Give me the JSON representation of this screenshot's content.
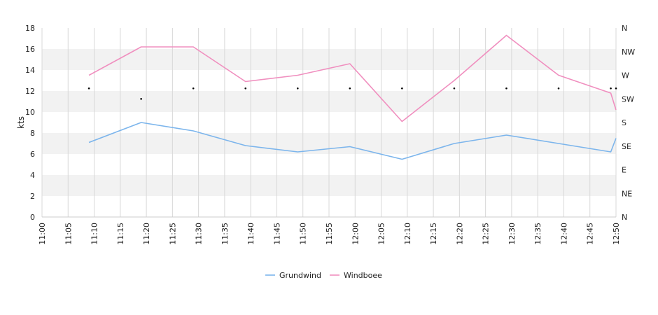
{
  "chart_data": {
    "type": "line",
    "ylabel": "kts",
    "ylim": [
      0,
      18
    ],
    "yticks": [
      "0",
      "2",
      "4",
      "6",
      "8",
      "10",
      "12",
      "14",
      "16",
      "18"
    ],
    "direction_ticks": [
      "N",
      "NE",
      "E",
      "SE",
      "S",
      "SW",
      "W",
      "NW",
      "N"
    ],
    "x_ticks": [
      "11:00",
      "11:05",
      "11:10",
      "11:15",
      "11:20",
      "11:25",
      "11:30",
      "11:35",
      "11:40",
      "11:45",
      "11:50",
      "11:55",
      "12:00",
      "12:05",
      "12:10",
      "12:15",
      "12:20",
      "12:25",
      "12:30",
      "12:35",
      "12:40",
      "12:45",
      "12:50"
    ],
    "x_range": [
      "11:00",
      "12:50"
    ],
    "grid": true,
    "legend_position": "bottom-center",
    "series": [
      {
        "name": "Grundwind",
        "color": "#7cb5ec",
        "points": [
          {
            "t": "11:09",
            "v": 7.1
          },
          {
            "t": "11:19",
            "v": 9.0
          },
          {
            "t": "11:29",
            "v": 8.2
          },
          {
            "t": "11:39",
            "v": 6.8
          },
          {
            "t": "11:49",
            "v": 6.2
          },
          {
            "t": "11:59",
            "v": 6.7
          },
          {
            "t": "12:09",
            "v": 5.5
          },
          {
            "t": "12:19",
            "v": 7.0
          },
          {
            "t": "12:29",
            "v": 7.8
          },
          {
            "t": "12:39",
            "v": 7.0
          },
          {
            "t": "12:49",
            "v": 6.2
          },
          {
            "t": "12:50",
            "v": 7.5
          }
        ]
      },
      {
        "name": "Windboee",
        "color": "#f08fbf",
        "points": [
          {
            "t": "11:09",
            "v": 13.5
          },
          {
            "t": "11:19",
            "v": 16.2
          },
          {
            "t": "11:29",
            "v": 16.2
          },
          {
            "t": "11:39",
            "v": 12.9
          },
          {
            "t": "11:49",
            "v": 13.5
          },
          {
            "t": "11:59",
            "v": 14.6
          },
          {
            "t": "12:09",
            "v": 9.1
          },
          {
            "t": "12:19",
            "v": 13.0
          },
          {
            "t": "12:29",
            "v": 17.3
          },
          {
            "t": "12:39",
            "v": 13.5
          },
          {
            "t": "12:49",
            "v": 11.8
          },
          {
            "t": "12:50",
            "v": 10.2
          }
        ]
      }
    ],
    "direction_points": [
      {
        "t": "11:09",
        "dir_deg": 245
      },
      {
        "t": "11:19",
        "dir_deg": 225
      },
      {
        "t": "11:29",
        "dir_deg": 245
      },
      {
        "t": "11:39",
        "dir_deg": 245
      },
      {
        "t": "11:49",
        "dir_deg": 245
      },
      {
        "t": "11:59",
        "dir_deg": 245
      },
      {
        "t": "12:09",
        "dir_deg": 245
      },
      {
        "t": "12:19",
        "dir_deg": 245
      },
      {
        "t": "12:29",
        "dir_deg": 245
      },
      {
        "t": "12:39",
        "dir_deg": 245
      },
      {
        "t": "12:49",
        "dir_deg": 245
      },
      {
        "t": "12:50",
        "dir_deg": 245
      }
    ]
  }
}
